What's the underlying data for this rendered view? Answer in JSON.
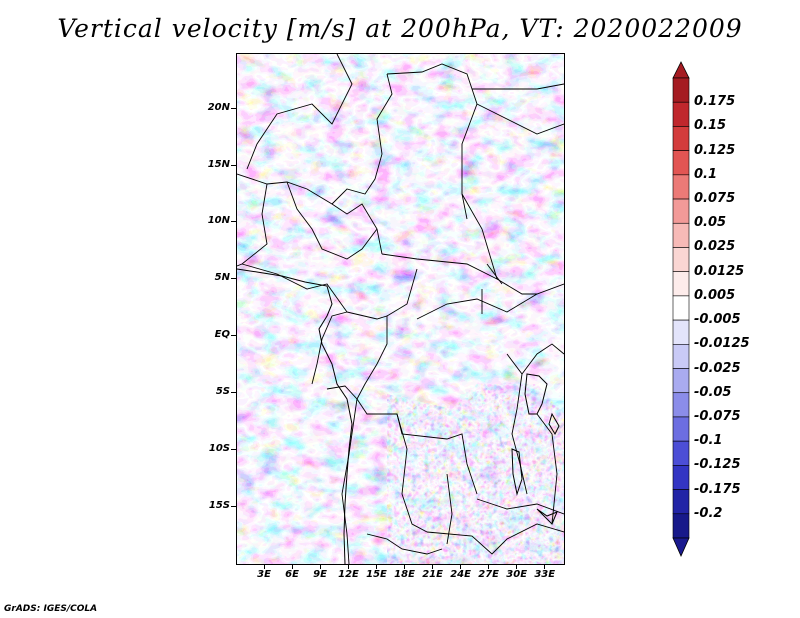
{
  "title": "Vertical velocity [m/s] at 200hPa, VT: 2020022009",
  "credit": "GrADS: IGES/COLA",
  "map": {
    "lat_labels": [
      "20N",
      "15N",
      "10N",
      "5N",
      "EQ",
      "5S",
      "10S",
      "15S"
    ],
    "lat_values": [
      20,
      15,
      10,
      5,
      0,
      -5,
      -10,
      -15
    ],
    "lon_labels": [
      "3E",
      "6E",
      "9E",
      "12E",
      "15E",
      "18E",
      "21E",
      "24E",
      "27E",
      "30E",
      "33E"
    ],
    "lon_values": [
      3,
      6,
      9,
      12,
      15,
      18,
      21,
      24,
      27,
      30,
      33
    ],
    "lat_range": [
      -20,
      24.8
    ],
    "lon_range": [
      0,
      35
    ]
  },
  "colorbar": {
    "levels": [
      "0.175",
      "0.15",
      "0.125",
      "0.1",
      "0.075",
      "0.05",
      "0.025",
      "0.0125",
      "0.005",
      "-0.005",
      "-0.0125",
      "-0.025",
      "-0.05",
      "-0.075",
      "-0.1",
      "-0.125",
      "-0.175",
      "-0.2"
    ],
    "colors": [
      "#a51c22",
      "#c0272d",
      "#d33c3c",
      "#e25553",
      "#ec7a77",
      "#f29a98",
      "#f7bab7",
      "#fad6d3",
      "#fdeceb",
      "#ffffff",
      "#e3e4fb",
      "#c9caf6",
      "#a9abf0",
      "#8b8de9",
      "#6c6ee1",
      "#4c4ed6",
      "#3335c3",
      "#2224a6",
      "#17198a"
    ],
    "over_color": "#a51c22",
    "under_color": "#1a1a8f"
  }
}
